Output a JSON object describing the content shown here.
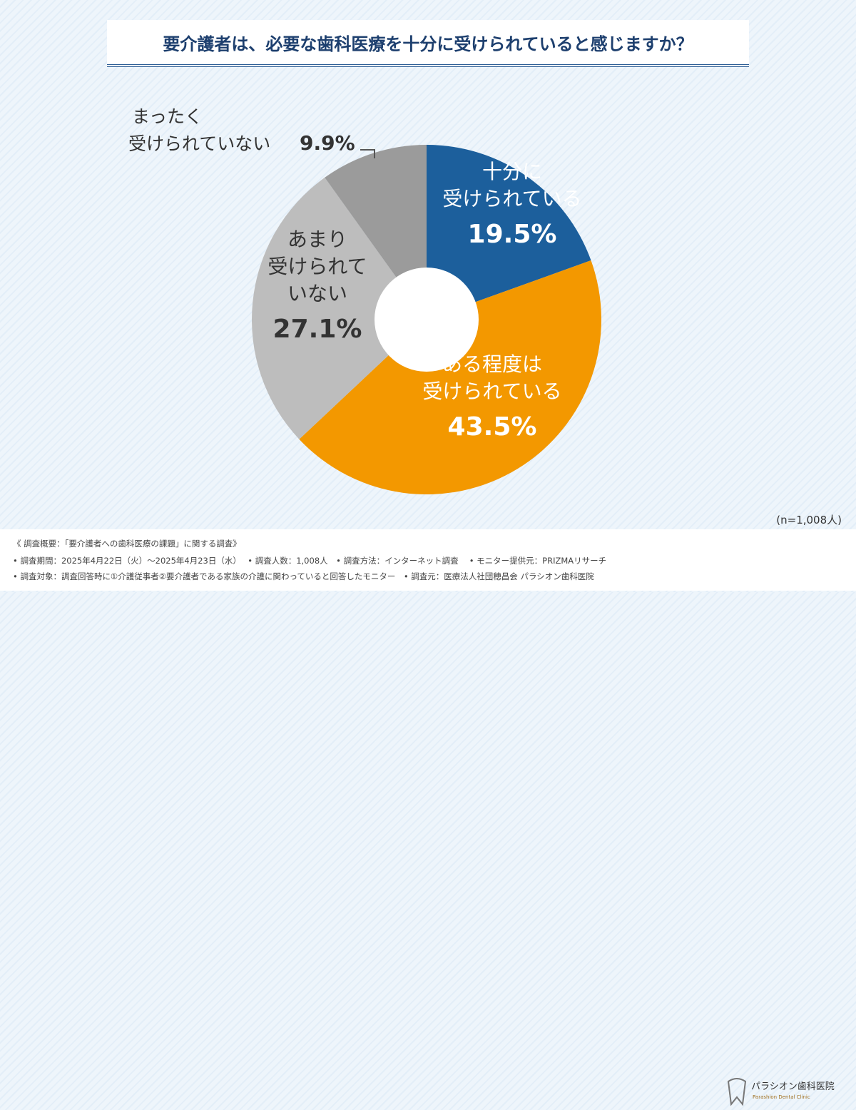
{
  "title": "要介護者は、必要な歯科医療を十分に受けられていると感じますか？",
  "sample": "(n=1,008人)",
  "chart_data": {
    "type": "pie",
    "donut": true,
    "title": "要介護者は、必要な歯科医療を十分に受けられていると感じますか？",
    "slices": [
      {
        "label": [
          "十分に",
          "受けられている"
        ],
        "value": 19.5,
        "display": "19.5%",
        "color": "#1c5f9c"
      },
      {
        "label": [
          "ある程度は",
          "受けられている"
        ],
        "value": 43.5,
        "display": "43.5%",
        "color": "#f39800"
      },
      {
        "label": [
          "あまり",
          "受けられて",
          "いない"
        ],
        "value": 27.1,
        "display": "27.1%",
        "color": "#bdbdbd"
      },
      {
        "label": [
          "まったく",
          "受けられていない"
        ],
        "value": 9.9,
        "display": "9.9%",
        "color": "#9b9b9b"
      }
    ]
  },
  "footer": {
    "lines": [
      "《 調査概要：「要介護者への歯科医療の課題」に関する調査》",
      "• 調査期間：2025年4月22日（火）～2025年4月23日（水）　 • 調査人数：1,008人　• 調査方法：インターネット調査　 • モニター提供元：PRIZMAリサーチ",
      "• 調査対象：調査回答時に①介護従事者②要介護者である家族の介護に関わっていると回答したモニター　• 調査元：医療法人社団穂昌会 パラシオン歯科医院"
    ],
    "logo_text": "パラシオン歯科医院",
    "logo_sub": "Parashion Dental Clinic"
  }
}
